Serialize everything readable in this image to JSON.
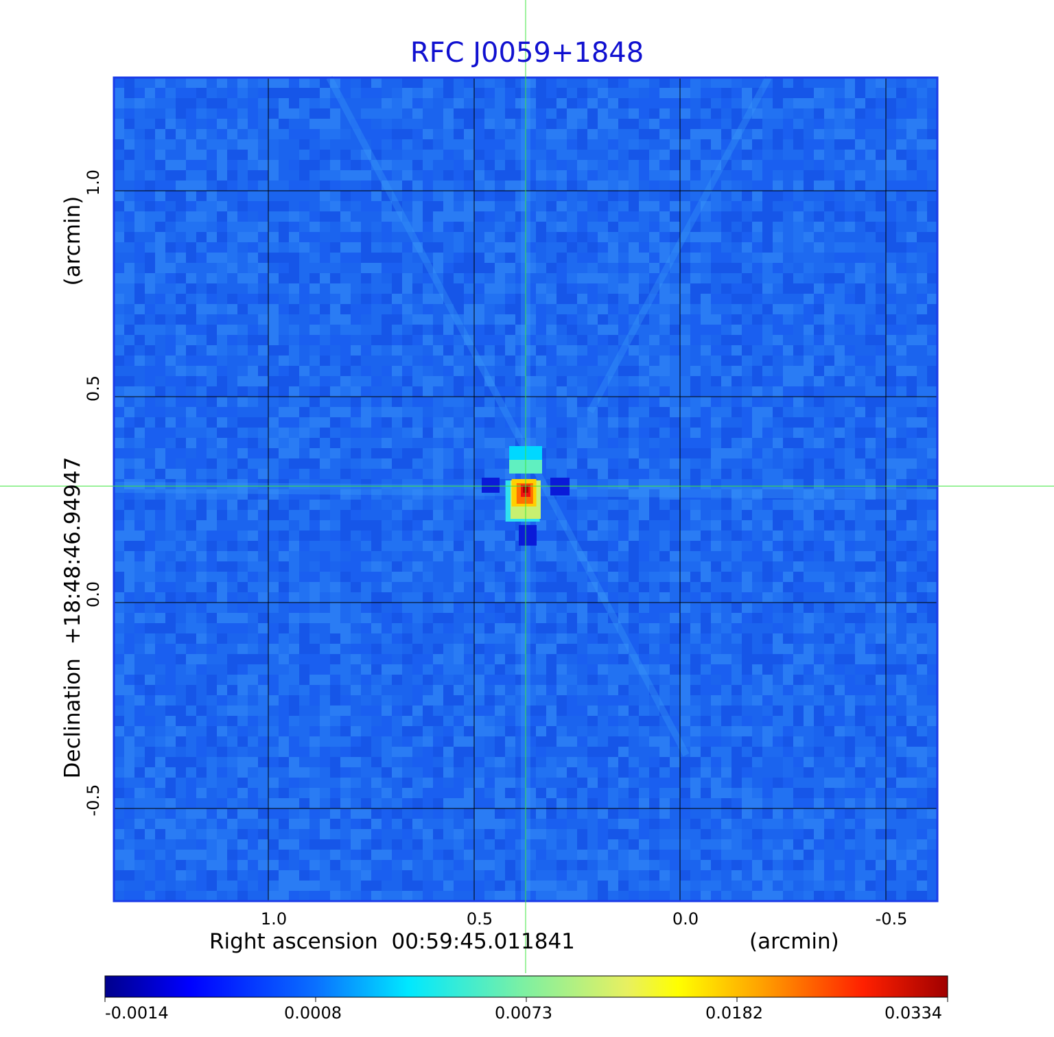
{
  "chart_data": {
    "type": "heatmap",
    "title": "RFC J0059+1848",
    "xlabel": "Right ascension  00:59:45.011841",
    "xunit": "(arcmin)",
    "ylabel": "Declination  +18:48:46.94947",
    "yunit": "(arcmin)",
    "xlim": [
      1.375,
      -0.625
    ],
    "ylim": [
      -0.725,
      1.275
    ],
    "x_ticks": [
      {
        "value": 1.0,
        "label": "1.0"
      },
      {
        "value": 0.5,
        "label": "0.5"
      },
      {
        "value": 0.0,
        "label": "0.0"
      },
      {
        "value": -0.5,
        "label": "-0.5"
      }
    ],
    "y_ticks": [
      {
        "value": 1.0,
        "label": "1.0"
      },
      {
        "value": 0.5,
        "label": "0.5"
      },
      {
        "value": 0.0,
        "label": "0.0"
      },
      {
        "value": -0.5,
        "label": "-0.5"
      }
    ],
    "grid": true,
    "crosshair": {
      "x": 0.375,
      "y": 0.283
    },
    "source_peak": {
      "x": 0.375,
      "y": 0.28,
      "value": 0.0334
    },
    "colormap": "jet",
    "colorbar": {
      "ticks": [
        "-0.0014",
        "0.0008",
        "0.0073",
        "0.0182",
        "0.0334"
      ],
      "range": [
        -0.0014,
        0.0334
      ]
    },
    "colors": {
      "title": "#1010d0",
      "frame": "#1a3be8",
      "background_field": "#1e6af0",
      "crosshair": "#3ce63c",
      "grid": "#000000"
    }
  }
}
